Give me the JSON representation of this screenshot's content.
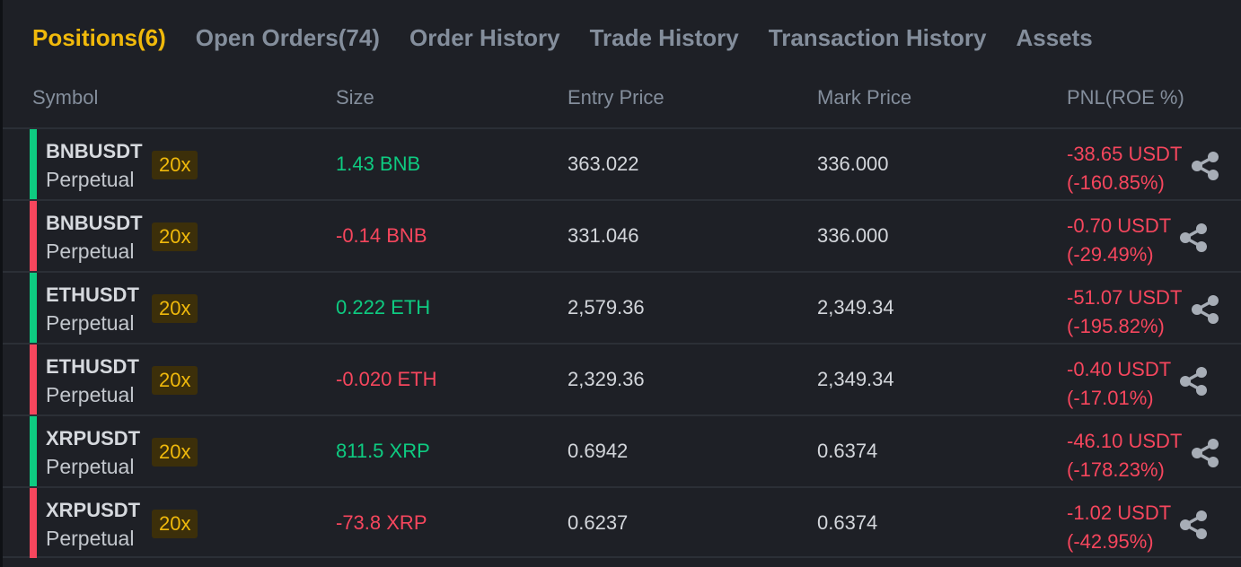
{
  "tabs": [
    {
      "label": "Positions(6)",
      "active": true
    },
    {
      "label": "Open Orders(74)",
      "active": false
    },
    {
      "label": "Order History",
      "active": false
    },
    {
      "label": "Trade History",
      "active": false
    },
    {
      "label": "Transaction History",
      "active": false
    },
    {
      "label": "Assets",
      "active": false
    }
  ],
  "columns": {
    "symbol": "Symbol",
    "size": "Size",
    "entry": "Entry Price",
    "mark": "Mark Price",
    "pnl": "PNL(ROE %)"
  },
  "colors": {
    "accent": "#f0b90b",
    "long": "#0ecb81",
    "short": "#f6465d",
    "background": "#1e2026"
  },
  "positions": [
    {
      "symbol": "BNBUSDT",
      "contract": "Perpetual",
      "leverage": "20x",
      "side": "long",
      "size": "1.43 BNB",
      "entry": "363.022",
      "mark": "336.000",
      "pnl": "-38.65 USDT",
      "roe": "(-160.85%)",
      "share_icon": "share-icon"
    },
    {
      "symbol": "BNBUSDT",
      "contract": "Perpetual",
      "leverage": "20x",
      "side": "short",
      "size": "-0.14 BNB",
      "entry": "331.046",
      "mark": "336.000",
      "pnl": "-0.70 USDT",
      "roe": "(-29.49%)",
      "share_icon": "share-icon"
    },
    {
      "symbol": "ETHUSDT",
      "contract": "Perpetual",
      "leverage": "20x",
      "side": "long",
      "size": "0.222 ETH",
      "entry": "2,579.36",
      "mark": "2,349.34",
      "pnl": "-51.07 USDT",
      "roe": "(-195.82%)",
      "share_icon": "share-icon"
    },
    {
      "symbol": "ETHUSDT",
      "contract": "Perpetual",
      "leverage": "20x",
      "side": "short",
      "size": "-0.020 ETH",
      "entry": "2,329.36",
      "mark": "2,349.34",
      "pnl": "-0.40 USDT",
      "roe": "(-17.01%)",
      "share_icon": "share-icon"
    },
    {
      "symbol": "XRPUSDT",
      "contract": "Perpetual",
      "leverage": "20x",
      "side": "long",
      "size": "811.5 XRP",
      "entry": "0.6942",
      "mark": "0.6374",
      "pnl": "-46.10 USDT",
      "roe": "(-178.23%)",
      "share_icon": "share-icon"
    },
    {
      "symbol": "XRPUSDT",
      "contract": "Perpetual",
      "leverage": "20x",
      "side": "short",
      "size": "-73.8 XRP",
      "entry": "0.6237",
      "mark": "0.6374",
      "pnl": "-1.02 USDT",
      "roe": "(-42.95%)",
      "share_icon": "share-icon"
    }
  ]
}
